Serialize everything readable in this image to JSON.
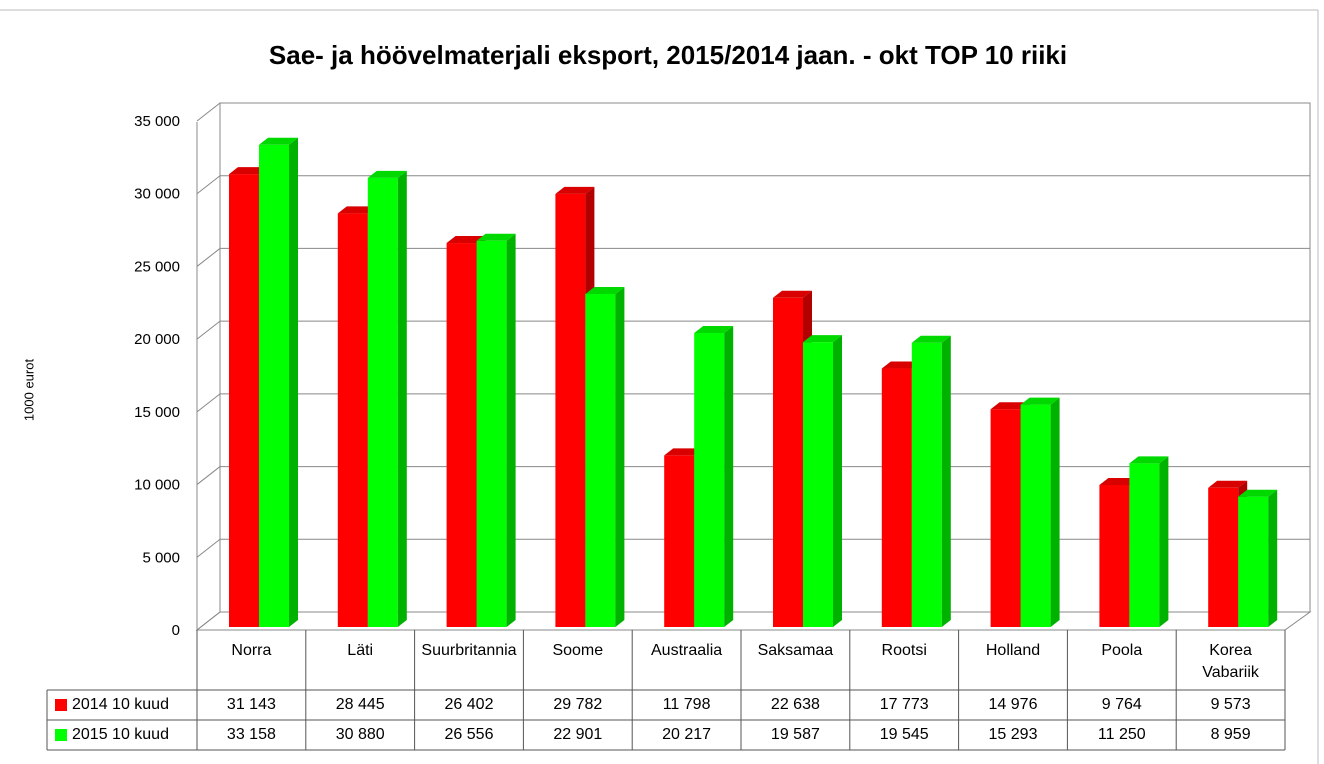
{
  "chart_data": {
    "type": "bar3d",
    "title": "Sae- ja höövelmaterjali eksport, 2015/2014 jaan. - okt TOP 10 riiki",
    "y_label": "1000 eurot",
    "categories": [
      "Norra",
      "Läti",
      "Suurbritannia",
      "Soome",
      "Austraalia",
      "Saksamaa",
      "Rootsi",
      "Holland",
      "Poola",
      "Korea Vabariik"
    ],
    "series": [
      {
        "name": "2014 10 kuud",
        "color": "#ff0000",
        "values": [
          31143,
          28445,
          26402,
          29782,
          11798,
          22638,
          17773,
          14976,
          9764,
          9573
        ],
        "value_labels": [
          "31 143",
          "28 445",
          "26 402",
          "29 782",
          "11 798",
          "22 638",
          "17 773",
          "14 976",
          "9 764",
          "9 573"
        ]
      },
      {
        "name": "2015 10 kuud",
        "color": "#00ff00",
        "values": [
          33158,
          30880,
          26556,
          22901,
          20217,
          19587,
          19545,
          15293,
          11250,
          8959
        ],
        "value_labels": [
          "33 158",
          "30 880",
          "26 556",
          "22 901",
          "20 217",
          "19 587",
          "19 545",
          "15 293",
          "11 250",
          "8 959"
        ]
      }
    ],
    "ylim": [
      0,
      35000
    ],
    "yticks": [
      0,
      {
        "value": 5000,
        "label": "5 000"
      },
      {
        "value": 10000,
        "label": "10 000"
      },
      {
        "value": 15000,
        "label": "15 000"
      },
      {
        "value": 20000,
        "label": "20 000"
      },
      {
        "value": 25000,
        "label": "25 000"
      },
      {
        "value": 30000,
        "label": "30 000"
      },
      {
        "value": 35000,
        "label": "35 000"
      }
    ],
    "grid": true,
    "data_table": true
  }
}
